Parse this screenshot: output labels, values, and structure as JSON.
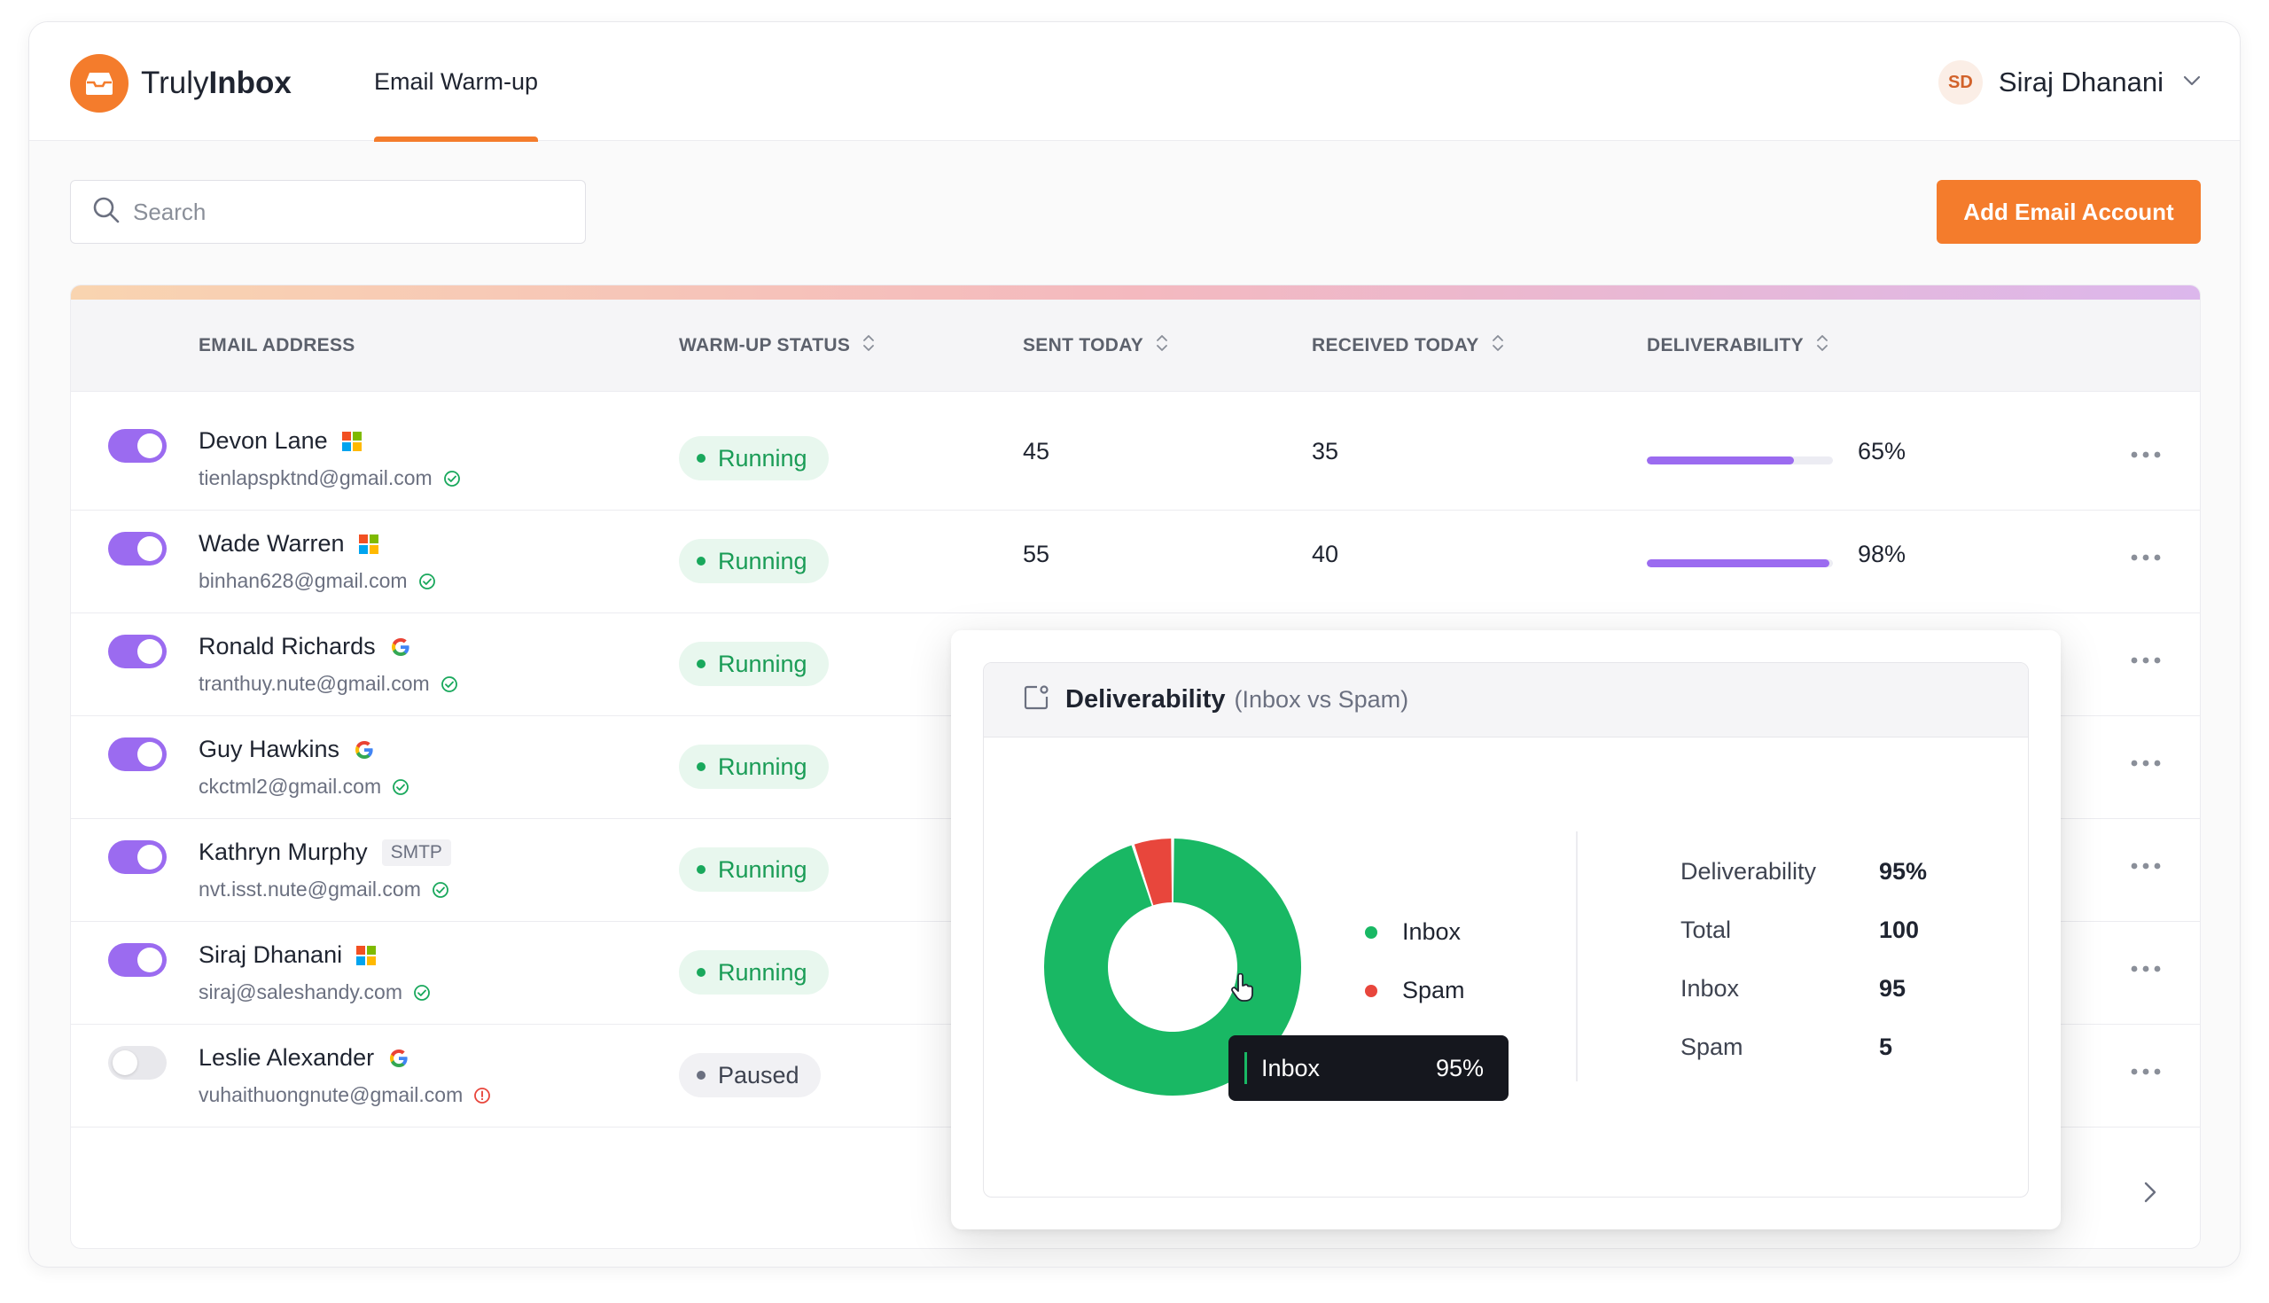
{
  "app": {
    "brand_light": "Truly",
    "brand_bold": "Inbox",
    "nav_tab": "Email Warm-up",
    "accent": "#f47c2c"
  },
  "user": {
    "initials": "SD",
    "name": "Siraj Dhanani"
  },
  "toolbar": {
    "search_placeholder": "Search",
    "add_button": "Add Email Account"
  },
  "table": {
    "columns": [
      "EMAIL ADDRESS",
      "WARM-UP STATUS",
      "SENT TODAY",
      "RECEIVED TODAY",
      "DELIVERABILITY"
    ],
    "rows": [
      {
        "enabled": true,
        "name": "Devon Lane",
        "provider": "microsoft",
        "email": "tienlapspktnd@gmail.com",
        "verified": true,
        "status": "Running",
        "sent": "45",
        "received": "35",
        "deliverability": "65%",
        "deliverability_value": 0.65,
        "bar_fill": 0.79
      },
      {
        "enabled": true,
        "name": "Wade Warren",
        "provider": "microsoft",
        "email": "binhan628@gmail.com",
        "verified": true,
        "status": "Running",
        "sent": "55",
        "received": "40",
        "deliverability": "98%",
        "deliverability_value": 0.98,
        "bar_fill": 0.98
      },
      {
        "enabled": true,
        "name": "Ronald Richards",
        "provider": "google",
        "email": "tranthuy.nute@gmail.com",
        "verified": true,
        "status": "Running"
      },
      {
        "enabled": true,
        "name": "Guy Hawkins",
        "provider": "google",
        "email": "ckctml2@gmail.com",
        "verified": true,
        "status": "Running"
      },
      {
        "enabled": true,
        "name": "Kathryn Murphy",
        "provider": "smtp",
        "provider_label": "SMTP",
        "email": "nvt.isst.nute@gmail.com",
        "verified": true,
        "status": "Running"
      },
      {
        "enabled": true,
        "name": "Siraj Dhanani",
        "provider": "microsoft",
        "email": "siraj@saleshandy.com",
        "verified": true,
        "status": "Running"
      },
      {
        "enabled": false,
        "name": "Leslie Alexander",
        "provider": "google",
        "email": "vuhaithuongnute@gmail.com",
        "verified": false,
        "status": "Paused"
      }
    ]
  },
  "popup": {
    "title": "Deliverability",
    "subtitle": "(Inbox vs Spam)",
    "legend": [
      {
        "label": "Inbox",
        "color": "#19b864"
      },
      {
        "label": "Spam",
        "color": "#e8463c"
      }
    ],
    "stats": [
      {
        "label": "Deliverability",
        "value": "95%"
      },
      {
        "label": "Total",
        "value": "100"
      },
      {
        "label": "Inbox",
        "value": "95"
      },
      {
        "label": "Spam",
        "value": "5"
      }
    ],
    "tooltip": {
      "label": "Inbox",
      "value": "95%"
    }
  },
  "chart_data": {
    "type": "pie",
    "categories": [
      "Inbox",
      "Spam"
    ],
    "values": [
      95,
      5
    ],
    "colors": [
      "#19b864",
      "#e8463c"
    ],
    "donut": true,
    "legend_position": "right"
  }
}
